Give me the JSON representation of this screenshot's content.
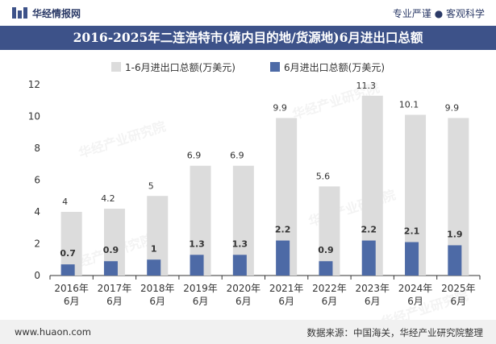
{
  "header": {
    "brand": "华经情报网",
    "slogan": "专业严谨 ● 客观科学"
  },
  "title": "2016-2025年二连浩特市(境内目的地/货源地)6月进出口总额",
  "footer": {
    "website": "www.huaon.com",
    "source": "数据来源：中国海关，华经产业研究院整理"
  },
  "colors": {
    "accent": "#3d5289",
    "series1": "#dcdcdc",
    "series2": "#4d6aa6"
  },
  "chart_data": {
    "type": "bar",
    "categories": [
      "2016年\n6月",
      "2017年\n6月",
      "2018年\n6月",
      "2019年\n6月",
      "2020年\n6月",
      "2021年\n6月",
      "2022年\n6月",
      "2023年\n6月",
      "2024年\n6月",
      "2025年\n6月"
    ],
    "series": [
      {
        "name": "1-6月进出口总额(万美元)",
        "values": [
          4,
          4.2,
          5,
          6.9,
          6.9,
          9.9,
          5.6,
          11.3,
          10.1,
          9.9
        ]
      },
      {
        "name": "6月进出口总额(万美元)",
        "values": [
          0.7,
          0.9,
          1,
          1.3,
          1.3,
          2.2,
          0.9,
          2.2,
          2.1,
          1.9
        ]
      }
    ],
    "ylim": [
      0,
      12
    ],
    "yticks": [
      0,
      2,
      4,
      6,
      8,
      10,
      12
    ],
    "legend": "top",
    "grid": false
  }
}
